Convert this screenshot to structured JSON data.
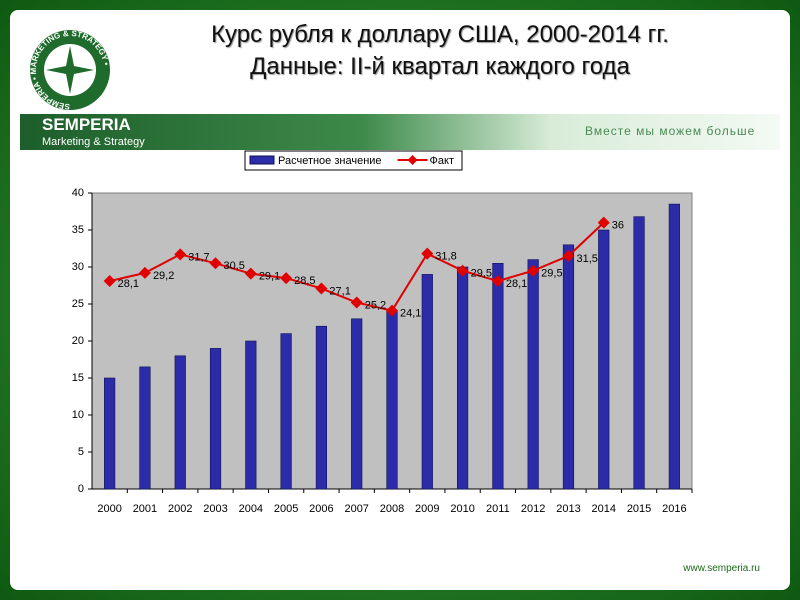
{
  "header": {
    "title_line1": "Курс рубля к доллару США, 2000-2014 гг.",
    "title_line2": "Данные: II-й квартал каждого года",
    "logo_ring": "SEMPERIA • MARKETING & STRATEGY •",
    "brand": "SEMPERIA",
    "brand_sub": "Marketing & Strategy",
    "slogan": "Вместе мы можем больше"
  },
  "footer": {
    "url": "www.semperia.ru"
  },
  "chart_data": {
    "type": "combo",
    "categories": [
      "2000",
      "2001",
      "2002",
      "2003",
      "2004",
      "2005",
      "2006",
      "2007",
      "2008",
      "2009",
      "2010",
      "2011",
      "2012",
      "2013",
      "2014",
      "2015",
      "2016"
    ],
    "series": [
      {
        "name": "Расчетное значение",
        "type": "bar",
        "color": "#2c2ca8",
        "values": [
          15,
          16.5,
          18,
          19,
          20,
          21,
          22,
          23,
          24,
          29,
          30,
          30.5,
          31,
          33,
          35,
          36.8,
          38.5
        ]
      },
      {
        "name": "Факт",
        "type": "line",
        "color": "#e00000",
        "values": [
          28.1,
          29.2,
          31.7,
          30.5,
          29.1,
          28.5,
          27.1,
          25.2,
          24.1,
          31.8,
          29.5,
          28.1,
          29.5,
          31.5,
          36,
          null,
          null
        ],
        "value_labels": [
          "28,1",
          "29,2",
          "31,7",
          "30,5",
          "29,1",
          "28,5",
          "27,1",
          "25,2",
          "24,1",
          "31,8",
          "29,5",
          "28,1",
          "29,5",
          "31,5",
          "36",
          null,
          null
        ]
      }
    ],
    "ylim": [
      0,
      40
    ],
    "yticks": [
      0,
      5,
      10,
      15,
      20,
      25,
      30,
      35,
      40
    ],
    "grid": false,
    "legend": "top"
  }
}
